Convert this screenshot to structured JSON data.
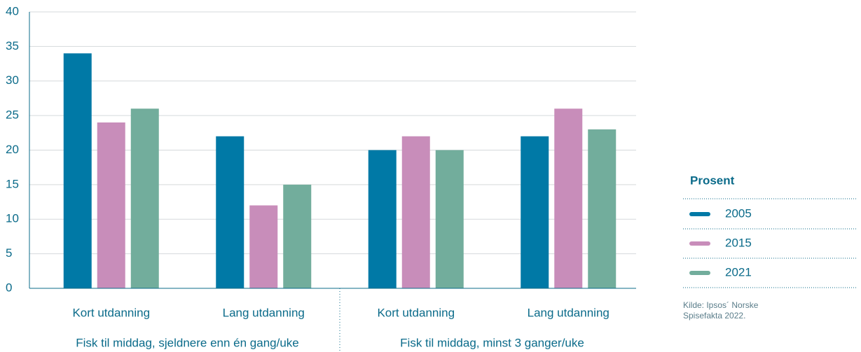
{
  "chart_data": {
    "type": "bar",
    "categories": [
      "Kort utdanning",
      "Lang utdanning",
      "Kort utdanning",
      "Lang utdanning"
    ],
    "groups": [
      "Fisk til middag, sjeldnere enn én gang/uke",
      "Fisk til middag, minst 3 ganger/uke"
    ],
    "series": [
      {
        "name": "2005",
        "color": "#0079a6",
        "values": [
          34,
          22,
          20,
          22
        ]
      },
      {
        "name": "2015",
        "color": "#c88dba",
        "values": [
          24,
          12,
          22,
          26
        ]
      },
      {
        "name": "2021",
        "color": "#72ad9c",
        "values": [
          26,
          15,
          20,
          23
        ]
      }
    ],
    "legend_title": "Prosent",
    "source": "Kilde: Ipsos´ Norske Spisefakta 2022.",
    "ylim": [
      0,
      40
    ],
    "yticks": [
      0,
      5,
      10,
      15,
      20,
      25,
      30,
      35,
      40
    ],
    "grid": true,
    "legend_position": "right"
  }
}
